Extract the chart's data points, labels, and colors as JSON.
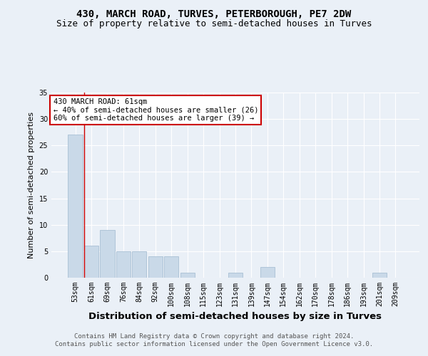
{
  "title": "430, MARCH ROAD, TURVES, PETERBOROUGH, PE7 2DW",
  "subtitle": "Size of property relative to semi-detached houses in Turves",
  "xlabel": "Distribution of semi-detached houses by size in Turves",
  "ylabel": "Number of semi-detached properties",
  "categories": [
    "53sqm",
    "61sqm",
    "69sqm",
    "76sqm",
    "84sqm",
    "92sqm",
    "100sqm",
    "108sqm",
    "115sqm",
    "123sqm",
    "131sqm",
    "139sqm",
    "147sqm",
    "154sqm",
    "162sqm",
    "170sqm",
    "178sqm",
    "186sqm",
    "193sqm",
    "201sqm",
    "209sqm"
  ],
  "values": [
    27,
    6,
    9,
    5,
    5,
    4,
    4,
    1,
    0,
    0,
    1,
    0,
    2,
    0,
    0,
    0,
    0,
    0,
    0,
    1,
    0
  ],
  "bar_color": "#c9d9e8",
  "bar_edgecolor": "#a8c0d4",
  "subject_line_color": "#cc0000",
  "vline_x": 1,
  "ylim": [
    0,
    35
  ],
  "yticks": [
    0,
    5,
    10,
    15,
    20,
    25,
    30,
    35
  ],
  "annotation_text": "430 MARCH ROAD: 61sqm\n← 40% of semi-detached houses are smaller (26)\n60% of semi-detached houses are larger (39) →",
  "annotation_box_color": "#ffffff",
  "annotation_box_edgecolor": "#cc0000",
  "footer_text": "Contains HM Land Registry data © Crown copyright and database right 2024.\nContains public sector information licensed under the Open Government Licence v3.0.",
  "bg_color": "#eaf0f7",
  "plot_bg_color": "#eaf0f7",
  "grid_color": "#ffffff",
  "title_fontsize": 10,
  "subtitle_fontsize": 9,
  "xlabel_fontsize": 9.5,
  "ylabel_fontsize": 8,
  "tick_fontsize": 7,
  "footer_fontsize": 6.5
}
